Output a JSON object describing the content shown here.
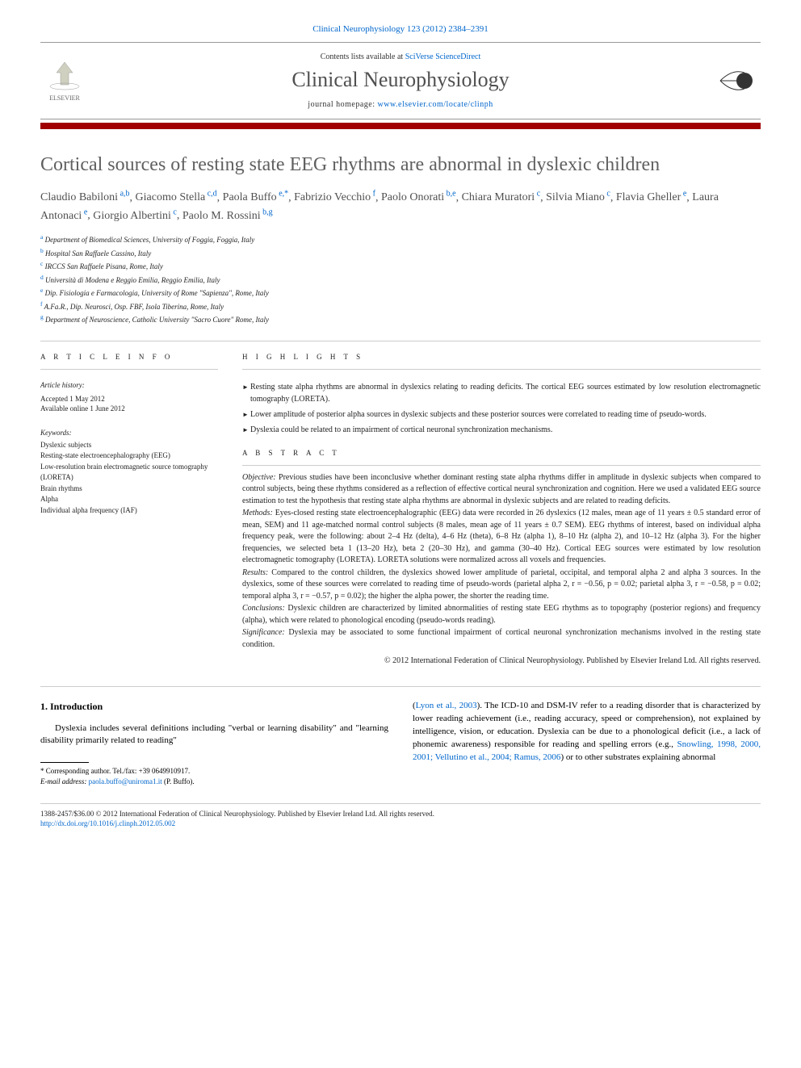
{
  "journal_ref": "Clinical Neurophysiology 123 (2012) 2384–2391",
  "header": {
    "contents_prefix": "Contents lists available at ",
    "contents_link": "SciVerse ScienceDirect",
    "journal_name": "Clinical Neurophysiology",
    "homepage_prefix": "journal homepage: ",
    "homepage_url": "www.elsevier.com/locate/clinph",
    "elsevier_label": "ELSEVIER"
  },
  "title": "Cortical sources of resting state EEG rhythms are abnormal in dyslexic children",
  "authors": [
    {
      "name": "Claudio Babiloni",
      "sup": "a,b"
    },
    {
      "name": "Giacomo Stella",
      "sup": "c,d"
    },
    {
      "name": "Paola Buffo",
      "sup": "e,*"
    },
    {
      "name": "Fabrizio Vecchio",
      "sup": "f"
    },
    {
      "name": "Paolo Onorati",
      "sup": "b,e"
    },
    {
      "name": "Chiara Muratori",
      "sup": "c"
    },
    {
      "name": "Silvia Miano",
      "sup": "c"
    },
    {
      "name": "Flavia Gheller",
      "sup": "e"
    },
    {
      "name": "Laura Antonaci",
      "sup": "e"
    },
    {
      "name": "Giorgio Albertini",
      "sup": "c"
    },
    {
      "name": "Paolo M. Rossini",
      "sup": "b,g"
    }
  ],
  "affiliations": [
    {
      "sup": "a",
      "text": "Department of Biomedical Sciences, University of Foggia, Foggia, Italy"
    },
    {
      "sup": "b",
      "text": "Hospital San Raffaele Cassino, Italy"
    },
    {
      "sup": "c",
      "text": "IRCCS San Raffaele Pisana, Rome, Italy"
    },
    {
      "sup": "d",
      "text": "Università di Modena e Reggio Emilia, Reggio Emilia, Italy"
    },
    {
      "sup": "e",
      "text": "Dip. Fisiologia e Farmacologia, University of Rome \"Sapienza\", Rome, Italy"
    },
    {
      "sup": "f",
      "text": "A.Fa.R., Dip. Neurosci, Osp. FBF, Isola Tiberina, Rome, Italy"
    },
    {
      "sup": "g",
      "text": "Department of Neuroscience, Catholic University \"Sacro Cuore\" Rome, Italy"
    }
  ],
  "article_info": {
    "heading": "A R T I C L E   I N F O",
    "history_label": "Article history:",
    "accepted": "Accepted 1 May 2012",
    "online": "Available online 1 June 2012",
    "keywords_label": "Keywords:",
    "keywords": [
      "Dyslexic subjects",
      "Resting-state electroencephalography (EEG)",
      "Low-resolution brain electromagnetic source tomography (LORETA)",
      "Brain rhythms",
      "Alpha",
      "Individual alpha frequency (IAF)"
    ]
  },
  "highlights": {
    "heading": "H I G H L I G H T S",
    "items": [
      "Resting state alpha rhythms are abnormal in dyslexics relating to reading deficits. The cortical EEG sources estimated by low resolution electromagnetic tomography (LORETA).",
      "Lower amplitude of posterior alpha sources in dyslexic subjects and these posterior sources were correlated to reading time of pseudo-words.",
      "Dyslexia could be related to an impairment of cortical neuronal synchronization mechanisms."
    ]
  },
  "abstract": {
    "heading": "A B S T R A C T",
    "objective_label": "Objective:",
    "objective": "Previous studies have been inconclusive whether dominant resting state alpha rhythms differ in amplitude in dyslexic subjects when compared to control subjects, being these rhythms considered as a reflection of effective cortical neural synchronization and cognition. Here we used a validated EEG source estimation to test the hypothesis that resting state alpha rhythms are abnormal in dyslexic subjects and are related to reading deficits.",
    "methods_label": "Methods:",
    "methods": "Eyes-closed resting state electroencephalographic (EEG) data were recorded in 26 dyslexics (12 males, mean age of 11 years ± 0.5 standard error of mean, SEM) and 11 age-matched normal control subjects (8 males, mean age of 11 years ± 0.7 SEM). EEG rhythms of interest, based on individual alpha frequency peak, were the following: about 2–4 Hz (delta), 4–6 Hz (theta), 6–8 Hz (alpha 1), 8–10 Hz (alpha 2), and 10–12 Hz (alpha 3). For the higher frequencies, we selected beta 1 (13–20 Hz), beta 2 (20–30 Hz), and gamma (30–40 Hz). Cortical EEG sources were estimated by low resolution electromagnetic tomography (LORETA). LORETA solutions were normalized across all voxels and frequencies.",
    "results_label": "Results:",
    "results": "Compared to the control children, the dyslexics showed lower amplitude of parietal, occipital, and temporal alpha 2 and alpha 3 sources. In the dyslexics, some of these sources were correlated to reading time of pseudo-words (parietal alpha 2, r = −0.56, p = 0.02; parietal alpha 3, r = −0.58, p = 0.02; temporal alpha 3, r = −0.57, p = 0.02); the higher the alpha power, the shorter the reading time.",
    "conclusions_label": "Conclusions:",
    "conclusions": "Dyslexic children are characterized by limited abnormalities of resting state EEG rhythms as to topography (posterior regions) and frequency (alpha), which were related to phonological encoding (pseudo-words reading).",
    "significance_label": "Significance:",
    "significance": "Dyslexia may be associated to some functional impairment of cortical neuronal synchronization mechanisms involved in the resting state condition.",
    "copyright": "© 2012 International Federation of Clinical Neurophysiology. Published by Elsevier Ireland Ltd. All rights reserved."
  },
  "body": {
    "section_heading": "1. Introduction",
    "left_para": "Dyslexia includes several definitions including \"verbal or learning disability\" and \"learning disability primarily related to reading\"",
    "right_para_1": "(",
    "right_ref_1": "Lyon et al., 2003",
    "right_para_2": "). The ICD-10 and DSM-IV refer to a reading disorder that is characterized by lower reading achievement (i.e., reading accuracy, speed or comprehension), not explained by intelligence, vision, or education. Dyslexia can be due to a phonological deficit (i.e., a lack of phonemic awareness) responsible for reading and spelling errors (e.g., ",
    "right_ref_2": "Snowling, 1998, 2000, 2001; Vellutino et al., 2004; Ramus, 2006",
    "right_para_3": ") or to other substrates explaining abnormal"
  },
  "footnote": {
    "corresponding": "* Corresponding author. Tel./fax: +39 0649910917.",
    "email_label": "E-mail address:",
    "email": "paola.buffo@uniroma1.it",
    "email_suffix": "(P. Buffo)."
  },
  "footer": {
    "line1": "1388-2457/$36.00 © 2012 International Federation of Clinical Neurophysiology. Published by Elsevier Ireland Ltd. All rights reserved.",
    "doi": "http://dx.doi.org/10.1016/j.clinph.2012.05.002"
  },
  "colors": {
    "link": "#0066cc",
    "red_bar": "#a00000",
    "grey_text": "#606060"
  }
}
